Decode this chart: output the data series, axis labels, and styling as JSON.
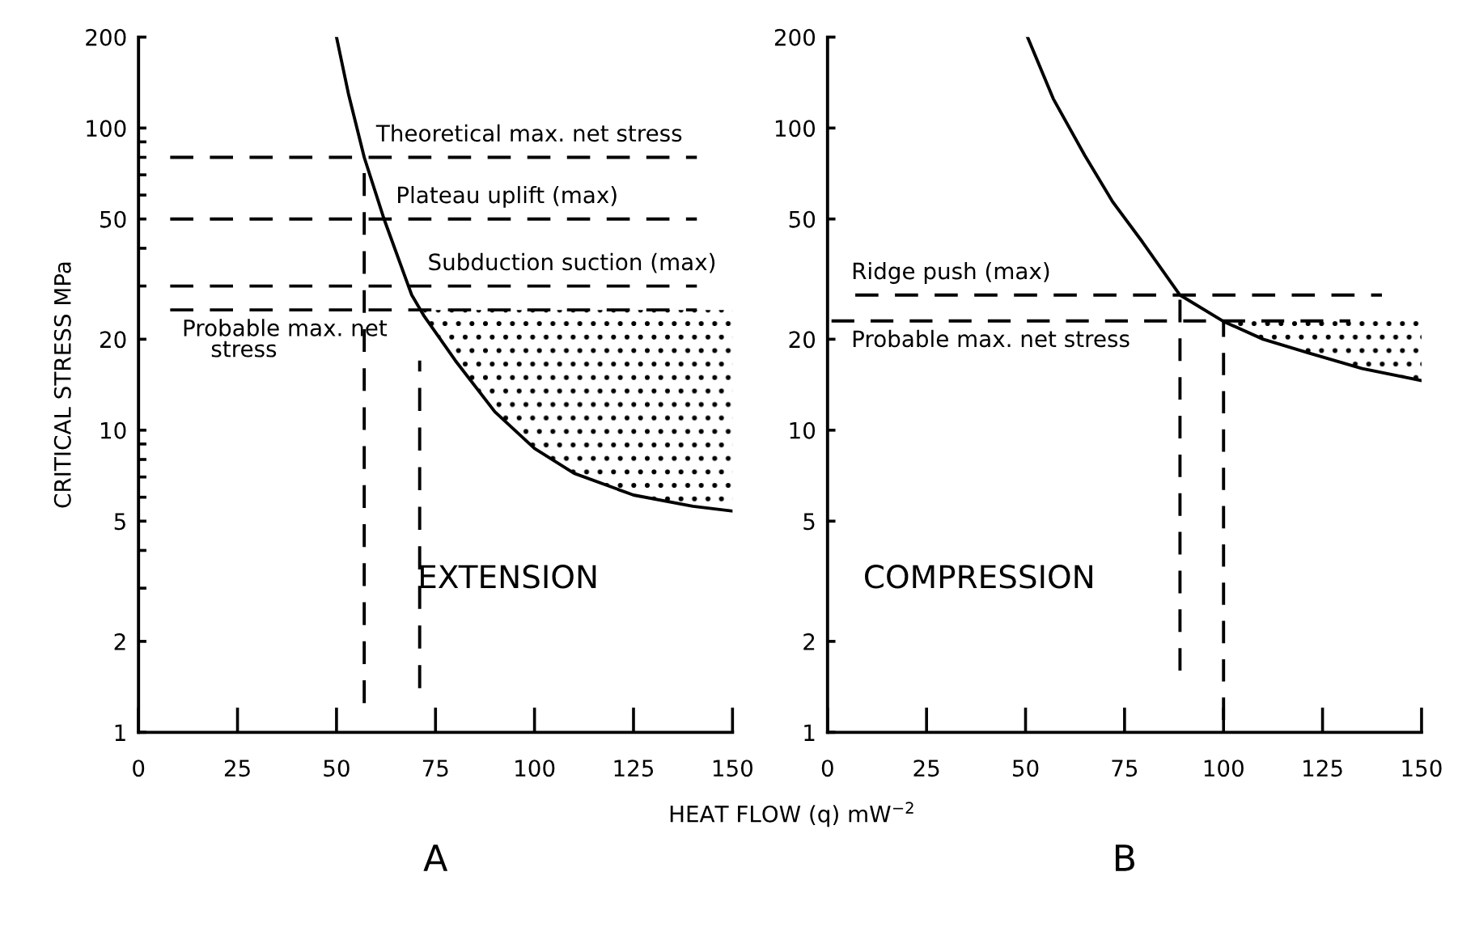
{
  "chart_data": [
    {
      "type": "line",
      "title": "A",
      "ylabel": "CRITICAL STRESS MPa",
      "xlabel": "HEAT FLOW (q) mW$^{−2}$",
      "log": "y",
      "grid": false,
      "xlim": [
        0,
        150
      ],
      "xticks": [
        0,
        25,
        50,
        75,
        100,
        125,
        150
      ],
      "ylim": [
        1,
        200
      ],
      "yticks": [
        1,
        2,
        {
          "value": 3,
          "label": null
        },
        {
          "value": 4,
          "label": null
        },
        5,
        {
          "value": 6,
          "label": null
        },
        {
          "value": 7,
          "label": null
        },
        {
          "value": 8,
          "label": null
        },
        {
          "value": 9,
          "label": null
        },
        10,
        20,
        {
          "value": 30,
          "label": null
        },
        {
          "value": 40,
          "label": null
        },
        50,
        {
          "value": 60,
          "label": null
        },
        {
          "value": 70,
          "label": null
        },
        {
          "value": 80,
          "label": null
        },
        {
          "value": 90,
          "label": null
        },
        100,
        200
      ],
      "series": [
        {
          "type": "area",
          "color": "#000000",
          "x": [
            72,
            80,
            90,
            100,
            110,
            125,
            140,
            150
          ],
          "values": [
            25,
            25,
            25,
            25,
            25,
            25,
            25,
            25
          ]
        },
        {
          "type": "line",
          "color": "#000000",
          "line_style": "solid",
          "x": [
            50,
            53,
            57,
            62,
            69,
            72,
            80,
            90,
            100,
            110,
            125,
            140,
            150
          ],
          "values": [
            200,
            130,
            80,
            50,
            28,
            24,
            17,
            11.5,
            8.7,
            7.2,
            6.1,
            5.6,
            5.4
          ]
        },
        {
          "type": "line",
          "color": "#000000",
          "line_style": "dashed",
          "x": [
            8,
            141
          ],
          "values": [
            80,
            80
          ]
        },
        {
          "type": "line",
          "color": "#000000",
          "line_style": "dashed",
          "x": [
            8,
            141
          ],
          "values": [
            50,
            50
          ]
        },
        {
          "type": "line",
          "color": "#000000",
          "line_style": "dashed",
          "x": [
            8,
            141
          ],
          "values": [
            30,
            30
          ]
        },
        {
          "type": "line",
          "color": "#000000",
          "line_style": "dashed",
          "x": [
            8,
            141
          ],
          "values": [
            25,
            25
          ]
        },
        {
          "type": "line",
          "color": "#000000",
          "line_style": "dashed",
          "x": [
            57,
            57
          ],
          "values": [
            1.25,
            80
          ]
        },
        {
          "type": "line",
          "color": "#000000",
          "line_style": "dashed",
          "x": [
            71,
            71
          ],
          "values": [
            1.4,
            17
          ]
        }
      ],
      "annotations": [
        {
          "text": "Theoretical max. net stress",
          "x": 60,
          "y": 80
        },
        {
          "text": "Plateau uplift (max)",
          "x": 65,
          "y": 50
        },
        {
          "text": "Subduction suction (max)",
          "x": 73,
          "y": 30
        },
        {
          "text": "Probable max. net\n    stress",
          "x": 11,
          "y": 25
        },
        "EXTENSION"
      ]
    },
    {
      "type": "line",
      "title": "B",
      "log": "y",
      "grid": false,
      "xlim": [
        0,
        150
      ],
      "xticks": [
        0,
        25,
        50,
        75,
        100,
        125,
        150
      ],
      "ylim": [
        1,
        200
      ],
      "yticks": [
        1,
        2,
        5,
        10,
        20,
        50,
        100,
        200
      ],
      "series": [
        {
          "type": "area",
          "color": "#000000",
          "x": [
            100,
            110,
            121.5,
            135,
            150
          ],
          "values": [
            23,
            23,
            23,
            23,
            23
          ]
        },
        {
          "type": "line",
          "color": "#000000",
          "line_style": "solid",
          "x": [
            50.5,
            57,
            65,
            72,
            79.5,
            89,
            100,
            110,
            121.5,
            135,
            150
          ],
          "values": [
            200,
            125,
            81,
            57,
            42,
            28,
            22.9,
            20,
            18,
            16,
            14.6
          ]
        },
        {
          "type": "line",
          "color": "#000000",
          "line_style": "dashed",
          "x": [
            7,
            140
          ],
          "values": [
            28,
            28
          ]
        },
        {
          "type": "line",
          "color": "#000000",
          "line_style": "dashed",
          "x": [
            1,
            132
          ],
          "values": [
            23,
            23
          ]
        },
        {
          "type": "line",
          "color": "#000000",
          "line_style": "dashed",
          "x": [
            89,
            89
          ],
          "values": [
            1.6,
            28
          ]
        },
        {
          "type": "line",
          "color": "#000000",
          "line_style": "dashed",
          "x": [
            100,
            100
          ],
          "values": [
            1.1,
            23
          ]
        }
      ],
      "annotations": [
        {
          "text": "Ridge push (max)",
          "x": 6,
          "y": 28
        },
        {
          "text": "Probable max. net stress",
          "x": 6,
          "y": 23
        },
        "COMPRESSION"
      ]
    }
  ]
}
